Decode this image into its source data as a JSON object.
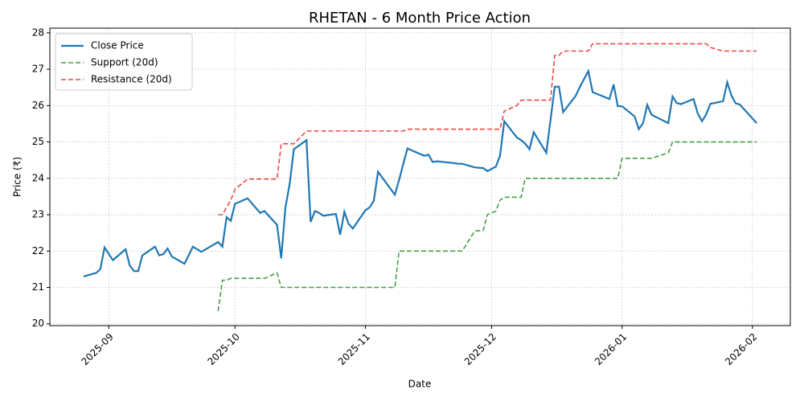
{
  "chart_data": {
    "type": "line",
    "title": "RHETAN - 6 Month Price Action",
    "x_label": "Date",
    "y_label": "Price (₹)",
    "x": [
      20326,
      20329,
      20330,
      20331,
      20333,
      20336,
      20337,
      20338,
      20339,
      20340,
      20343,
      20344,
      20345,
      20346,
      20347,
      20350,
      20352,
      20354,
      20358,
      20359,
      20360,
      20361,
      20362,
      20365,
      20368,
      20369,
      20372,
      20373,
      20374,
      20375,
      20376,
      20379,
      20380,
      20381,
      20382,
      20383,
      20386,
      20387,
      20388,
      20389,
      20390,
      20393,
      20394,
      20395,
      20396,
      20400,
      20401,
      20402,
      20403,
      20407,
      20408,
      20409,
      20410,
      20414,
      20415,
      20416,
      20419,
      20421,
      20422,
      20424,
      20425,
      20426,
      20429,
      20430,
      20431,
      20432,
      20433,
      20436,
      20437,
      20438,
      20439,
      20440,
      20443,
      20444,
      20446,
      20447,
      20451,
      20452,
      20453,
      20454,
      20457,
      20458,
      20459,
      20460,
      20461,
      20465,
      20466,
      20467,
      20468,
      20471,
      20472,
      20473,
      20474,
      20475,
      20478,
      20479,
      20480,
      20481,
      20482,
      20486
    ],
    "series": [
      {
        "name": "Close Price",
        "color": "#1f77b4",
        "style": "solid",
        "values": [
          21.3,
          21.4,
          21.5,
          22.1,
          21.75,
          22.05,
          21.6,
          21.45,
          21.45,
          21.88,
          22.12,
          21.88,
          21.92,
          22.07,
          21.85,
          21.65,
          22.12,
          21.98,
          22.25,
          22.12,
          22.93,
          22.83,
          23.3,
          23.45,
          23.05,
          23.1,
          22.72,
          21.8,
          23.2,
          23.85,
          24.8,
          25.05,
          22.8,
          23.1,
          23.05,
          22.97,
          23.02,
          22.45,
          23.08,
          22.75,
          22.62,
          23.12,
          23.2,
          23.38,
          24.18,
          23.55,
          23.95,
          24.4,
          24.82,
          24.62,
          24.65,
          24.45,
          24.47,
          24.42,
          24.4,
          24.4,
          24.3,
          24.28,
          24.2,
          24.32,
          24.62,
          25.57,
          25.12,
          25.05,
          24.95,
          24.8,
          25.27,
          24.7,
          25.6,
          26.52,
          26.52,
          25.82,
          26.27,
          26.52,
          26.95,
          26.37,
          26.18,
          26.58,
          25.98,
          25.98,
          25.7,
          25.35,
          25.52,
          26.02,
          25.75,
          25.52,
          26.25,
          26.07,
          26.04,
          26.18,
          25.78,
          25.57,
          25.76,
          26.05,
          26.12,
          26.64,
          26.28,
          26.06,
          26.03,
          25.52
        ]
      },
      {
        "name": "Support (20d)",
        "color": "#43a047",
        "style": "dashed",
        "values": [
          null,
          null,
          null,
          null,
          null,
          null,
          null,
          null,
          null,
          null,
          null,
          null,
          null,
          null,
          null,
          null,
          null,
          null,
          20.35,
          21.2,
          21.2,
          21.25,
          21.25,
          21.25,
          21.25,
          21.25,
          21.4,
          21.0,
          21.0,
          21.0,
          21.0,
          21.0,
          21.0,
          21.0,
          21.0,
          21.0,
          21.0,
          21.0,
          21.0,
          21.0,
          21.0,
          21.0,
          21.0,
          21.0,
          21.0,
          21.0,
          22.0,
          22.0,
          22.0,
          22.0,
          22.0,
          22.0,
          22.0,
          22.0,
          22.0,
          22.0,
          22.55,
          22.57,
          23.0,
          23.1,
          23.4,
          23.48,
          23.48,
          23.48,
          24.0,
          24.0,
          24.0,
          24.0,
          24.0,
          24.0,
          24.0,
          24.0,
          24.0,
          24.0,
          24.0,
          24.0,
          24.0,
          24.0,
          24.0,
          24.55,
          24.55,
          24.55,
          24.55,
          24.55,
          24.55,
          24.7,
          25.0,
          25.0,
          25.0,
          25.0,
          25.0,
          25.0,
          25.0,
          25.0,
          25.0,
          25.0,
          25.0,
          25.0,
          25.0,
          25.0
        ]
      },
      {
        "name": "Resistance (20d)",
        "color": "#f04848",
        "style": "dashed",
        "values": [
          null,
          null,
          null,
          null,
          null,
          null,
          null,
          null,
          null,
          null,
          null,
          null,
          null,
          null,
          null,
          null,
          null,
          null,
          23.0,
          23.0,
          23.2,
          23.4,
          23.7,
          23.98,
          23.98,
          23.98,
          23.98,
          24.95,
          24.95,
          24.95,
          24.95,
          25.3,
          25.3,
          25.3,
          25.3,
          25.3,
          25.3,
          25.3,
          25.3,
          25.3,
          25.3,
          25.3,
          25.3,
          25.3,
          25.3,
          25.3,
          25.3,
          25.3,
          25.35,
          25.35,
          25.35,
          25.35,
          25.35,
          25.35,
          25.35,
          25.35,
          25.35,
          25.35,
          25.35,
          25.35,
          25.35,
          25.85,
          26.0,
          26.15,
          26.15,
          26.15,
          26.15,
          26.15,
          26.15,
          27.38,
          27.38,
          27.5,
          27.5,
          27.5,
          27.5,
          27.7,
          27.7,
          27.7,
          27.7,
          27.7,
          27.7,
          27.7,
          27.7,
          27.7,
          27.7,
          27.7,
          27.7,
          27.7,
          27.7,
          27.7,
          27.7,
          27.7,
          27.7,
          27.6,
          27.5,
          27.5,
          27.5,
          27.5,
          27.5,
          27.5
        ]
      }
    ],
    "xlim": [
      20318,
      20494
    ],
    "xticks": [
      {
        "value": 20332,
        "label": "2025-09"
      },
      {
        "value": 20362,
        "label": "2025-10"
      },
      {
        "value": 20393,
        "label": "2025-11"
      },
      {
        "value": 20423,
        "label": "2025-12"
      },
      {
        "value": 20454,
        "label": "2026-01"
      },
      {
        "value": 20485,
        "label": "2026-02"
      }
    ],
    "ylim": [
      19.95,
      28.13
    ],
    "yticks": [
      20,
      21,
      22,
      23,
      24,
      25,
      26,
      27,
      28
    ],
    "grid": true,
    "legend": "upper-left"
  }
}
